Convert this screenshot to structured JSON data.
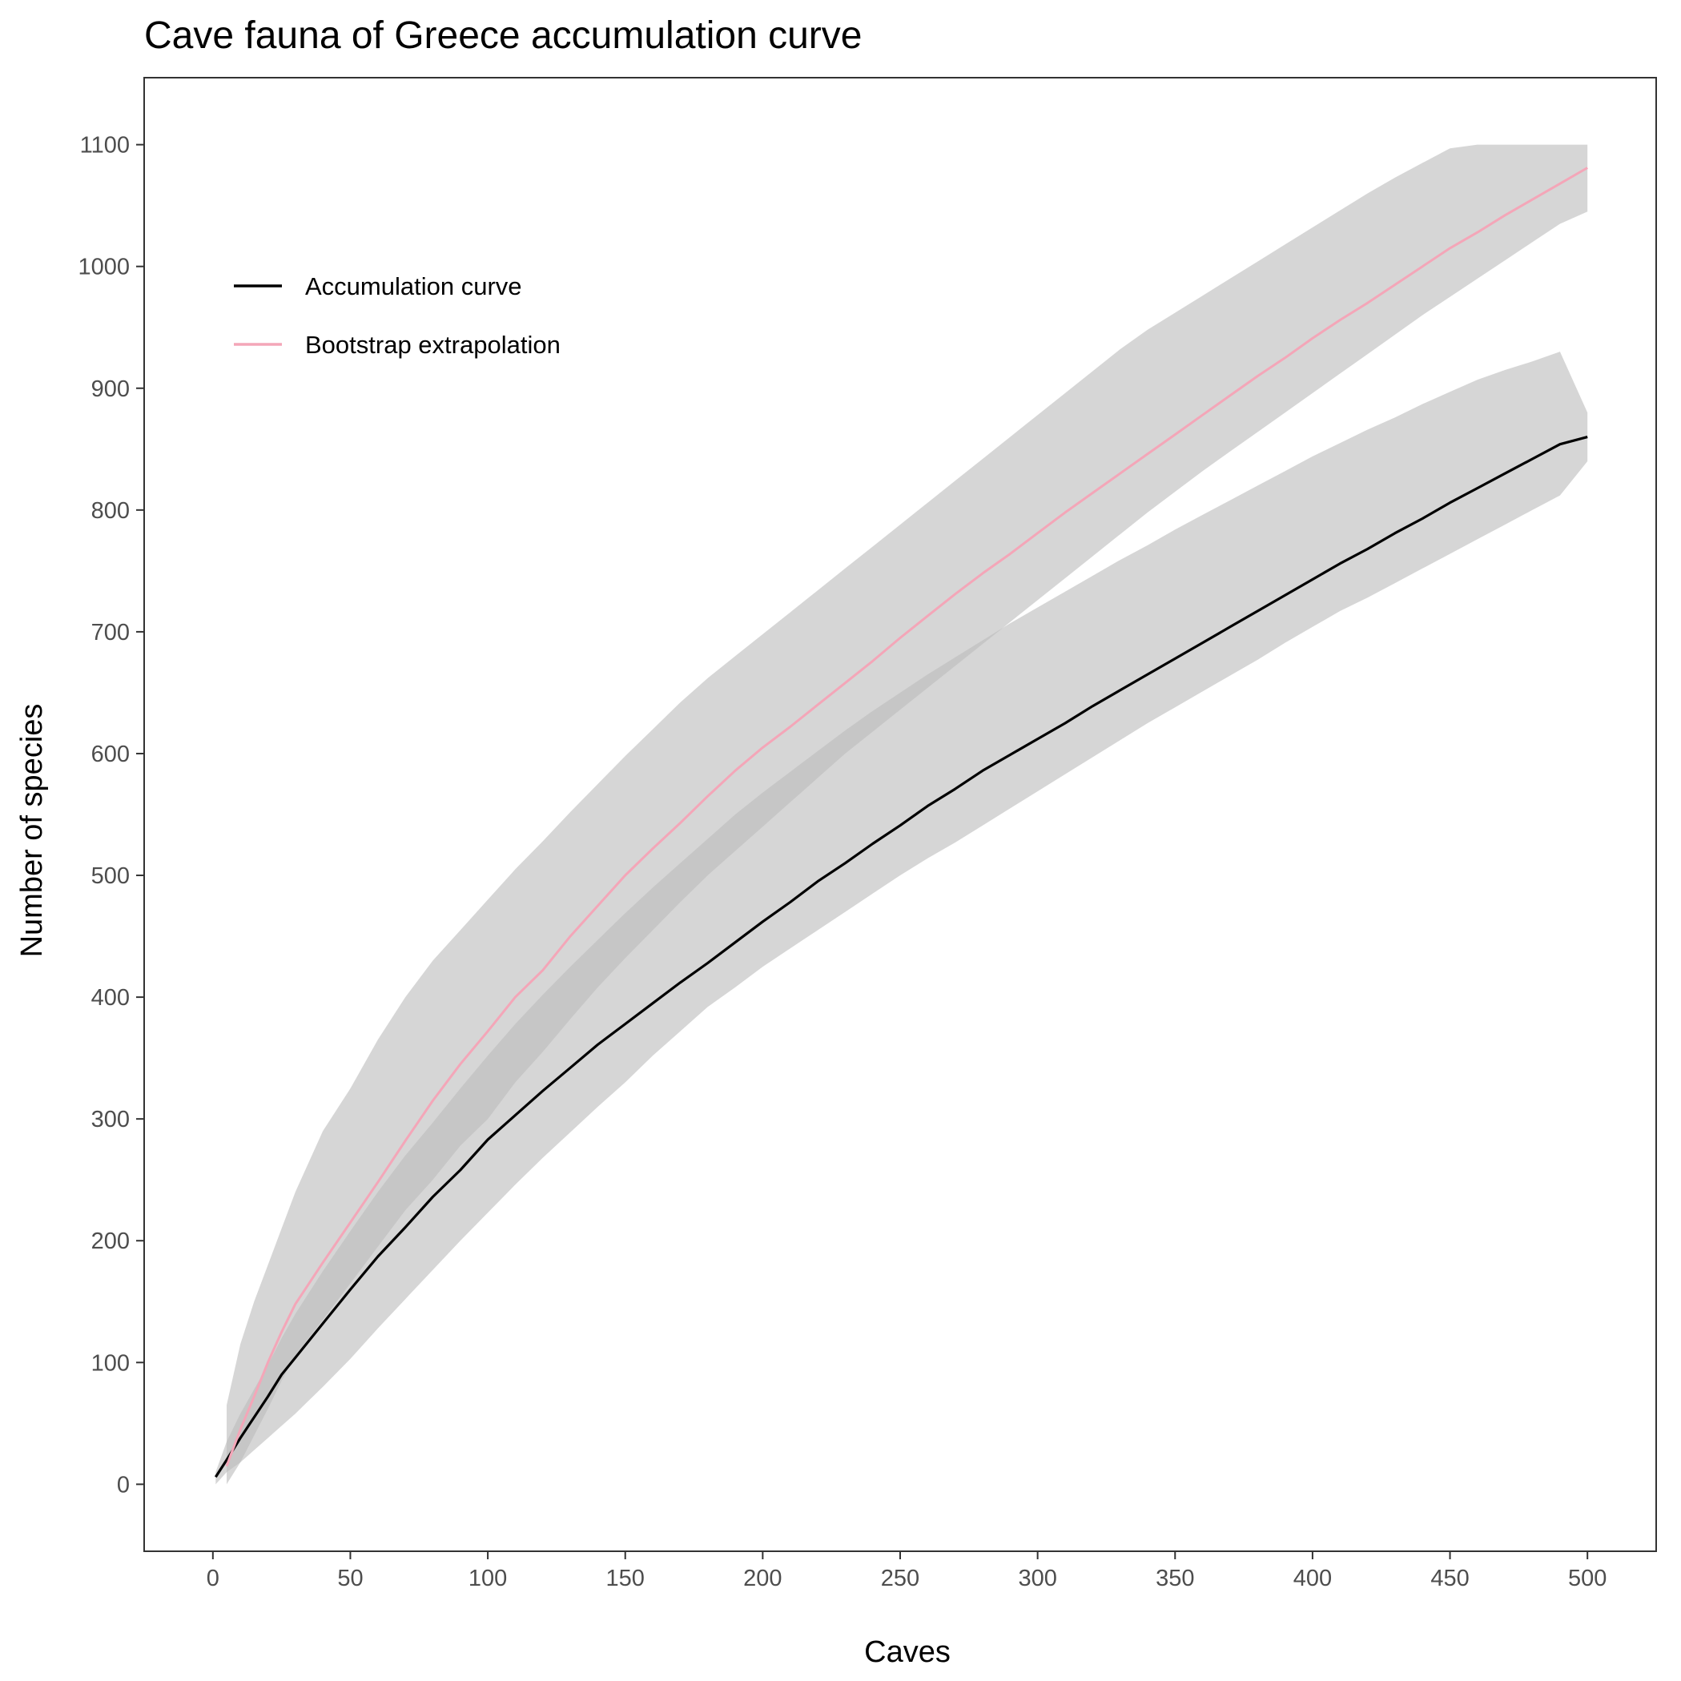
{
  "chart_data": {
    "type": "line",
    "title": "Cave fauna of Greece accumulation curve",
    "xlabel": "Caves",
    "ylabel": "Number of species",
    "xlim": [
      -25,
      525
    ],
    "ylim": [
      -55,
      1155
    ],
    "x_ticks": [
      0,
      50,
      100,
      150,
      200,
      250,
      300,
      350,
      400,
      450,
      500
    ],
    "y_ticks": [
      0,
      100,
      200,
      300,
      400,
      500,
      600,
      700,
      800,
      900,
      1000,
      1100
    ],
    "grid": false,
    "legend_position": "top-left",
    "series": [
      {
        "name": "Accumulation curve",
        "color": "#000000",
        "band_color": "#bdbdbd",
        "x": [
          1,
          5,
          10,
          15,
          20,
          25,
          30,
          40,
          50,
          60,
          70,
          80,
          90,
          100,
          110,
          120,
          130,
          140,
          150,
          160,
          170,
          180,
          190,
          200,
          210,
          220,
          230,
          240,
          250,
          260,
          270,
          280,
          290,
          300,
          310,
          320,
          330,
          340,
          350,
          360,
          370,
          380,
          390,
          400,
          410,
          420,
          430,
          440,
          450,
          460,
          470,
          480,
          490,
          500
        ],
        "values": [
          6,
          20,
          38,
          55,
          72,
          90,
          104,
          132,
          160,
          187,
          211,
          236,
          258,
          283,
          303,
          323,
          342,
          361,
          378,
          395,
          412,
          428,
          445,
          462,
          478,
          495,
          510,
          526,
          541,
          557,
          571,
          586,
          599,
          612,
          625,
          639,
          652,
          665,
          678,
          691,
          704,
          717,
          730,
          743,
          756,
          768,
          781,
          793,
          806,
          818,
          830,
          842,
          854,
          860
        ],
        "lower": [
          0,
          10,
          18,
          28,
          38,
          48,
          58,
          80,
          103,
          128,
          152,
          176,
          200,
          223,
          246,
          268,
          289,
          310,
          330,
          352,
          372,
          392,
          408,
          425,
          440,
          455,
          470,
          485,
          500,
          514,
          527,
          541,
          555,
          569,
          583,
          597,
          611,
          625,
          638,
          651,
          664,
          677,
          691,
          704,
          717,
          728,
          740,
          752,
          764,
          776,
          788,
          800,
          812,
          840
        ],
        "upper": [
          10,
          35,
          58,
          78,
          98,
          120,
          140,
          175,
          208,
          240,
          270,
          297,
          325,
          352,
          378,
          402,
          425,
          447,
          469,
          490,
          510,
          530,
          550,
          568,
          585,
          602,
          619,
          635,
          650,
          665,
          679,
          693,
          707,
          720,
          733,
          746,
          759,
          771,
          784,
          796,
          808,
          820,
          832,
          844,
          855,
          866,
          876,
          887,
          897,
          907,
          915,
          922,
          930,
          880
        ]
      },
      {
        "name": "Bootstrap extrapolation",
        "color": "#f4a6b8",
        "band_color": "#bdbdbd",
        "x": [
          5,
          10,
          15,
          20,
          25,
          30,
          40,
          50,
          60,
          70,
          80,
          90,
          100,
          110,
          120,
          130,
          140,
          150,
          160,
          170,
          180,
          190,
          200,
          210,
          220,
          230,
          240,
          250,
          260,
          270,
          280,
          290,
          300,
          310,
          320,
          330,
          340,
          350,
          360,
          370,
          380,
          390,
          400,
          410,
          420,
          430,
          440,
          450,
          460,
          470,
          480,
          490,
          500
        ],
        "values": [
          15,
          45,
          72,
          100,
          125,
          148,
          182,
          215,
          248,
          282,
          315,
          345,
          372,
          400,
          422,
          450,
          475,
          500,
          522,
          543,
          565,
          586,
          605,
          622,
          640,
          658,
          676,
          695,
          713,
          731,
          748,
          764,
          781,
          798,
          814,
          830,
          846,
          862,
          878,
          894,
          910,
          925,
          941,
          956,
          970,
          985,
          1000,
          1015,
          1028,
          1042,
          1055,
          1068,
          1081
        ],
        "lower": [
          0,
          18,
          40,
          62,
          85,
          106,
          135,
          165,
          195,
          225,
          250,
          278,
          300,
          330,
          355,
          382,
          408,
          432,
          455,
          478,
          500,
          520,
          540,
          560,
          580,
          600,
          618,
          636,
          654,
          672,
          690,
          708,
          726,
          744,
          762,
          780,
          798,
          815,
          832,
          848,
          864,
          880,
          896,
          912,
          928,
          944,
          960,
          975,
          990,
          1005,
          1020,
          1035,
          1045
        ],
        "upper": [
          65,
          115,
          150,
          180,
          210,
          240,
          290,
          325,
          365,
          400,
          430,
          455,
          480,
          505,
          528,
          552,
          575,
          598,
          620,
          642,
          662,
          680,
          698,
          716,
          734,
          752,
          770,
          788,
          806,
          824,
          842,
          860,
          878,
          896,
          914,
          932,
          948,
          962,
          976,
          990,
          1004,
          1018,
          1032,
          1046,
          1060,
          1073,
          1085,
          1097,
          1100,
          1100,
          1100,
          1100,
          1100
        ]
      }
    ]
  }
}
